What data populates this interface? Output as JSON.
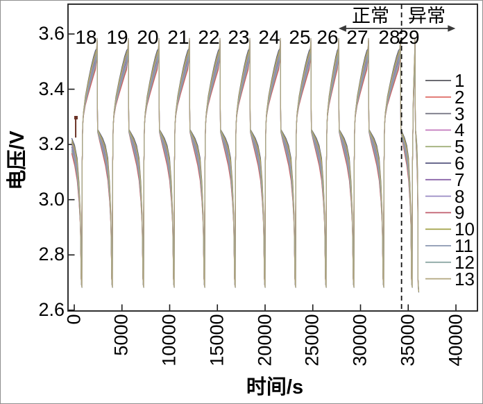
{
  "figure": {
    "background": "#ffffff",
    "outer_border_color": "#8f8f8f",
    "frame_color": "#1a1a1a",
    "text_color": "#000000"
  },
  "chart_data": {
    "type": "line",
    "title": "",
    "xlabel": "时间/s",
    "ylabel": "电压/V",
    "xlim": [
      -655,
      42255
    ],
    "ylim": [
      2.597,
      3.708
    ],
    "xticks": [
      0,
      5000,
      10000,
      15000,
      20000,
      25000,
      30000,
      35000,
      40000
    ],
    "yticks": [
      {
        "v": 2.6,
        "label": "2.6"
      },
      {
        "v": 2.8,
        "label": "2.8"
      },
      {
        "v": 3.0,
        "label": "3.0"
      },
      {
        "v": 3.2,
        "label": "3.2"
      },
      {
        "v": 3.4,
        "label": "3.4"
      },
      {
        "v": 3.6,
        "label": "3.6"
      }
    ],
    "grid": false,
    "legend": {
      "position": "right-inside",
      "entries": [
        {
          "name": "1",
          "color": "#56565e"
        },
        {
          "name": "2",
          "color": "#e0716b"
        },
        {
          "name": "3",
          "color": "#6f6f7d"
        },
        {
          "name": "4",
          "color": "#c379bd"
        },
        {
          "name": "5",
          "color": "#a2b17b"
        },
        {
          "name": "6",
          "color": "#54547e"
        },
        {
          "name": "7",
          "color": "#8a63a8"
        },
        {
          "name": "8",
          "color": "#9a8bc4"
        },
        {
          "name": "9",
          "color": "#c05e6e"
        },
        {
          "name": "10",
          "color": "#a8a855"
        },
        {
          "name": "11",
          "color": "#8997b1"
        },
        {
          "name": "12",
          "color": "#8da9a5"
        },
        {
          "name": "13",
          "color": "#b1a67e"
        }
      ]
    },
    "series": [
      {
        "name": "1",
        "color": "#56565e",
        "spread": 0.5
      },
      {
        "name": "2",
        "color": "#e0716b",
        "spread": 0.1
      },
      {
        "name": "3",
        "color": "#6f6f7d",
        "spread": 0.7
      },
      {
        "name": "4",
        "color": "#c379bd",
        "spread": 0.35
      },
      {
        "name": "5",
        "color": "#a2b17b",
        "spread": 0.25
      },
      {
        "name": "6",
        "color": "#54547e",
        "spread": 1.0
      },
      {
        "name": "7",
        "color": "#8a63a8",
        "spread": 0.8
      },
      {
        "name": "8",
        "color": "#9a8bc4",
        "spread": 0.6
      },
      {
        "name": "9",
        "color": "#c05e6e",
        "spread": 0.15
      },
      {
        "name": "10",
        "color": "#a8a855",
        "spread": 0.9
      },
      {
        "name": "11",
        "color": "#8997b1",
        "spread": 0.45
      },
      {
        "name": "12",
        "color": "#8da9a5",
        "spread": 0.3
      },
      {
        "name": "13",
        "color": "#b1a67e",
        "spread": 0.75
      }
    ],
    "cycles": [
      {
        "label": "18",
        "label_t": 1236,
        "spike_t": 2400,
        "plunge_t": 3930
      },
      {
        "label": "19",
        "label_t": 4509,
        "spike_t": 5673,
        "plunge_t": 7203
      },
      {
        "label": "20",
        "label_t": 7709,
        "spike_t": 8873,
        "plunge_t": 10403
      },
      {
        "label": "21",
        "label_t": 10909,
        "spike_t": 12073,
        "plunge_t": 13603
      },
      {
        "label": "22",
        "label_t": 14109,
        "spike_t": 15273,
        "plunge_t": 16803
      },
      {
        "label": "23",
        "label_t": 17236,
        "spike_t": 18400,
        "plunge_t": 19930
      },
      {
        "label": "24",
        "label_t": 20436,
        "spike_t": 21600,
        "plunge_t": 23130
      },
      {
        "label": "25",
        "label_t": 23636,
        "spike_t": 24800,
        "plunge_t": 26330
      },
      {
        "label": "26",
        "label_t": 26545,
        "spike_t": 27709,
        "plunge_t": 29239
      },
      {
        "label": "27",
        "label_t": 29673,
        "spike_t": 30836,
        "plunge_t": 32366
      },
      {
        "label": "28",
        "label_t": 33018,
        "spike_t": 34182,
        "plunge_t": 35346
      },
      {
        "label": "29",
        "label_t": 35055,
        "spike_t": 35709,
        "plunge_t": 36029
      }
    ],
    "cycle_shape": {
      "charge": [
        [
          0.0,
          3.262,
          0.1
        ],
        [
          0.05,
          3.3,
          0.2
        ],
        [
          0.18,
          3.338,
          0.45
        ],
        [
          0.38,
          3.375,
          0.7
        ],
        [
          0.58,
          3.41,
          0.9
        ],
        [
          0.75,
          3.44,
          1.0
        ],
        [
          0.88,
          3.462,
          1.0
        ],
        [
          0.96,
          3.5,
          0.6
        ],
        [
          1.0,
          3.572,
          0.08
        ]
      ],
      "discharge": [
        [
          0.01,
          3.24,
          0.15
        ],
        [
          0.15,
          3.205,
          0.4
        ],
        [
          0.35,
          3.16,
          0.7
        ],
        [
          0.55,
          3.115,
          0.9
        ],
        [
          0.72,
          3.06,
          1.0
        ],
        [
          0.85,
          2.985,
          0.85
        ],
        [
          0.94,
          2.9,
          0.5
        ],
        [
          1.0,
          2.71,
          0.05
        ]
      ],
      "charge_spread_v": 0.078,
      "discharge_spread_v": 0.09,
      "spike_top_v": 3.572,
      "spike_drop_v": 3.245,
      "bottom_v": 2.695,
      "rest_gap_s": 150,
      "partial_first": {
        "plunge_t": 730,
        "duration_s": 1530,
        "from_frac": 0.35
      }
    },
    "annotations": {
      "normal_label": "正常",
      "abnormal_label": "异常",
      "normal_center_t": 31050,
      "abnormal_center_t": 36945,
      "arrow": {
        "t1": 27700,
        "t2": 39950,
        "v": 3.62
      },
      "dashed_line_t": 34300,
      "start_marker": {
        "t": 180,
        "v": 3.297,
        "color": "#6b3226"
      }
    }
  }
}
